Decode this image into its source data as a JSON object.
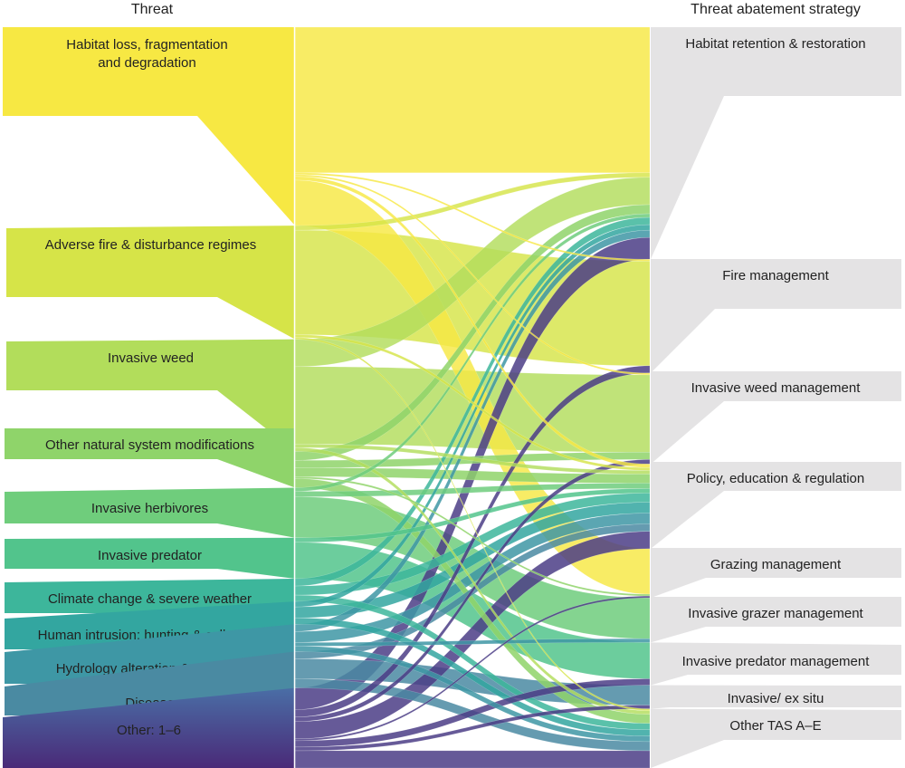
{
  "chart_data": {
    "type": "sankey",
    "left_header": "Threat",
    "right_header": "Threat abatement strategy",
    "sources": [
      {
        "label": "Habitat loss, fragmentation and degradation",
        "color": "#f7e843"
      },
      {
        "label": "Adverse fire & disturbance regimes",
        "color": "#d6e448"
      },
      {
        "label": "Invasive weed",
        "color": "#b2dd5b"
      },
      {
        "label": "Other natural system modifications",
        "color": "#8fd46a"
      },
      {
        "label": "Invasive herbivores",
        "color": "#6fcd7c"
      },
      {
        "label": "Invasive predator",
        "color": "#52c48c"
      },
      {
        "label": "Climate change & severe weather",
        "color": "#3db69b"
      },
      {
        "label": "Human intrusion; hunting & collecting",
        "color": "#33a6a0"
      },
      {
        "label": "Hydrology alteration & pollution",
        "color": "#3e97a5"
      },
      {
        "label": "Disease",
        "color": "#4a8aa2"
      },
      {
        "label": "Other: 1–6",
        "color": "#4a6ea6",
        "color_end": "#4a2a78"
      }
    ],
    "targets": [
      {
        "label": "Habitat retention & restoration"
      },
      {
        "label": "Fire management"
      },
      {
        "label": "Invasive weed management"
      },
      {
        "label": "Policy, education & regulation"
      },
      {
        "label": "Grazing management"
      },
      {
        "label": "Invasive grazer management"
      },
      {
        "label": "Invasive predator management"
      },
      {
        "label": "Invasive/ ex situ"
      },
      {
        "label": "Other TAS A–E"
      }
    ],
    "target_color": "#e4e3e4",
    "links": [
      [
        0,
        0,
        160
      ],
      [
        0,
        1,
        2
      ],
      [
        0,
        2,
        2
      ],
      [
        0,
        3,
        4
      ],
      [
        0,
        4,
        50
      ],
      [
        1,
        0,
        5
      ],
      [
        1,
        1,
        115
      ],
      [
        1,
        3,
        3
      ],
      [
        1,
        8,
        2
      ],
      [
        2,
        0,
        30
      ],
      [
        2,
        2,
        85
      ],
      [
        2,
        3,
        4
      ],
      [
        2,
        8,
        4
      ],
      [
        3,
        0,
        10
      ],
      [
        3,
        2,
        8
      ],
      [
        3,
        3,
        10
      ],
      [
        3,
        4,
        2
      ],
      [
        3,
        8,
        10
      ],
      [
        4,
        0,
        4
      ],
      [
        4,
        3,
        6
      ],
      [
        4,
        5,
        45
      ],
      [
        5,
        3,
        5
      ],
      [
        5,
        6,
        40
      ],
      [
        6,
        0,
        8
      ],
      [
        6,
        3,
        10
      ],
      [
        6,
        8,
        7
      ],
      [
        7,
        0,
        6
      ],
      [
        7,
        3,
        12
      ],
      [
        7,
        8,
        7
      ],
      [
        8,
        0,
        8
      ],
      [
        8,
        3,
        12
      ],
      [
        8,
        5,
        4
      ],
      [
        8,
        8,
        6
      ],
      [
        9,
        3,
        8
      ],
      [
        9,
        7,
        22
      ],
      [
        9,
        8,
        10
      ],
      [
        10,
        0,
        24
      ],
      [
        10,
        1,
        8
      ],
      [
        10,
        2,
        5
      ],
      [
        10,
        3,
        19
      ],
      [
        10,
        4,
        2
      ],
      [
        10,
        6,
        7
      ],
      [
        10,
        7,
        4
      ],
      [
        10,
        8,
        19
      ]
    ]
  }
}
